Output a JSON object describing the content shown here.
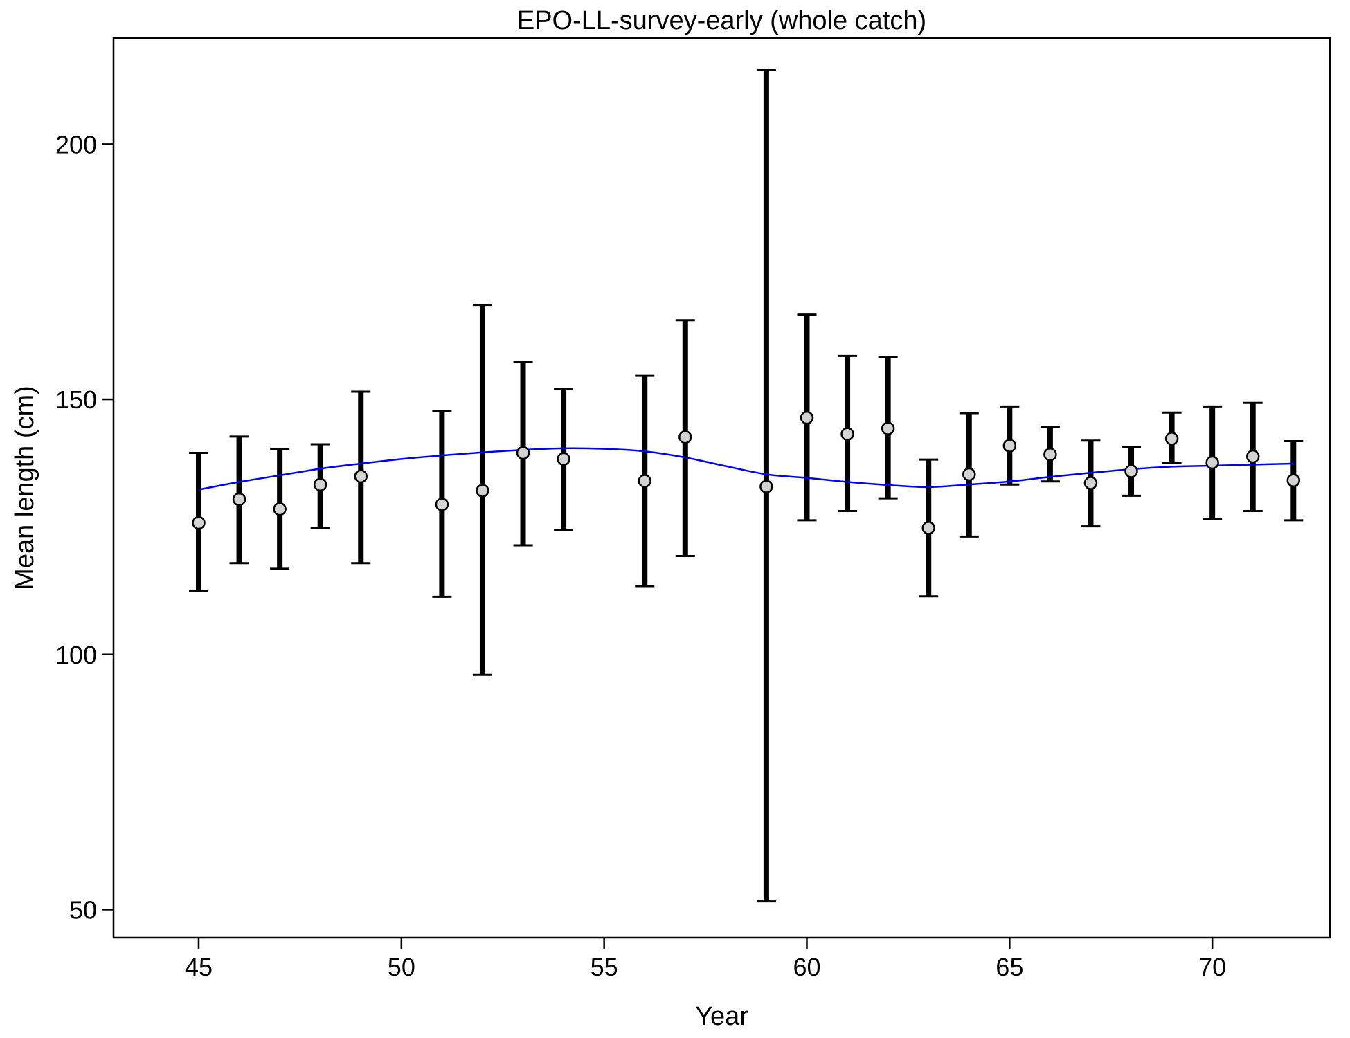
{
  "chart_data": {
    "type": "scatter",
    "title": "EPO-LL-survey-early (whole catch)",
    "xlabel": "Year",
    "ylabel": "Mean length (cm)",
    "xlim": [
      42.9,
      72.9
    ],
    "ylim": [
      44.5,
      220.8
    ],
    "xticks": [
      45,
      50,
      55,
      60,
      65,
      70
    ],
    "yticks": [
      50,
      100,
      150,
      200
    ],
    "grid": false,
    "legend": "none",
    "colors": {
      "points_fill": "#d3d3d3",
      "points_stroke": "#000000",
      "error_bars": "#000000",
      "trend_line": "#0000ff"
    },
    "points": [
      {
        "x": 45,
        "y": 125.8,
        "lo": 112.4,
        "hi": 139.5
      },
      {
        "x": 46,
        "y": 130.4,
        "lo": 117.9,
        "hi": 142.7
      },
      {
        "x": 47,
        "y": 128.5,
        "lo": 116.8,
        "hi": 140.3
      },
      {
        "x": 48,
        "y": 133.3,
        "lo": 124.8,
        "hi": 141.2
      },
      {
        "x": 49,
        "y": 134.9,
        "lo": 117.9,
        "hi": 151.5
      },
      {
        "x": 51,
        "y": 129.4,
        "lo": 111.3,
        "hi": 147.7
      },
      {
        "x": 52,
        "y": 132.1,
        "lo": 96.0,
        "hi": 168.5
      },
      {
        "x": 53,
        "y": 139.5,
        "lo": 121.4,
        "hi": 157.3
      },
      {
        "x": 54,
        "y": 138.3,
        "lo": 124.4,
        "hi": 152.1
      },
      {
        "x": 56,
        "y": 134.0,
        "lo": 113.4,
        "hi": 154.6
      },
      {
        "x": 57,
        "y": 142.6,
        "lo": 119.3,
        "hi": 165.5
      },
      {
        "x": 59,
        "y": 132.9,
        "lo": 51.6,
        "hi": 214.6
      },
      {
        "x": 60,
        "y": 146.4,
        "lo": 126.3,
        "hi": 166.6
      },
      {
        "x": 61,
        "y": 143.2,
        "lo": 128.1,
        "hi": 158.5
      },
      {
        "x": 62,
        "y": 144.3,
        "lo": 130.6,
        "hi": 158.3
      },
      {
        "x": 63,
        "y": 124.8,
        "lo": 111.4,
        "hi": 138.2
      },
      {
        "x": 64,
        "y": 135.3,
        "lo": 123.1,
        "hi": 147.3
      },
      {
        "x": 65,
        "y": 140.9,
        "lo": 133.3,
        "hi": 148.6
      },
      {
        "x": 66,
        "y": 139.2,
        "lo": 133.9,
        "hi": 144.6
      },
      {
        "x": 67,
        "y": 133.6,
        "lo": 125.1,
        "hi": 141.9
      },
      {
        "x": 68,
        "y": 135.9,
        "lo": 131.1,
        "hi": 140.6
      },
      {
        "x": 69,
        "y": 142.3,
        "lo": 137.6,
        "hi": 147.4
      },
      {
        "x": 70,
        "y": 137.6,
        "lo": 126.6,
        "hi": 148.6
      },
      {
        "x": 71,
        "y": 138.8,
        "lo": 128.1,
        "hi": 149.3
      },
      {
        "x": 72,
        "y": 134.1,
        "lo": 126.3,
        "hi": 141.8
      }
    ],
    "trend_line": {
      "name": "",
      "x": [
        45,
        46,
        47,
        48,
        49,
        50,
        51,
        52,
        53,
        54,
        55,
        56,
        57,
        58,
        59,
        60,
        61,
        62,
        63,
        64,
        65,
        66,
        67,
        68,
        69,
        70,
        71,
        72
      ],
      "y": [
        132.3,
        133.8,
        135.1,
        136.4,
        137.4,
        138.3,
        139.0,
        139.6,
        140.1,
        140.4,
        140.3,
        139.8,
        138.6,
        136.9,
        135.3,
        134.6,
        133.8,
        133.2,
        132.8,
        133.3,
        133.9,
        134.8,
        135.6,
        136.3,
        136.8,
        137.0,
        137.2,
        137.4
      ]
    }
  }
}
